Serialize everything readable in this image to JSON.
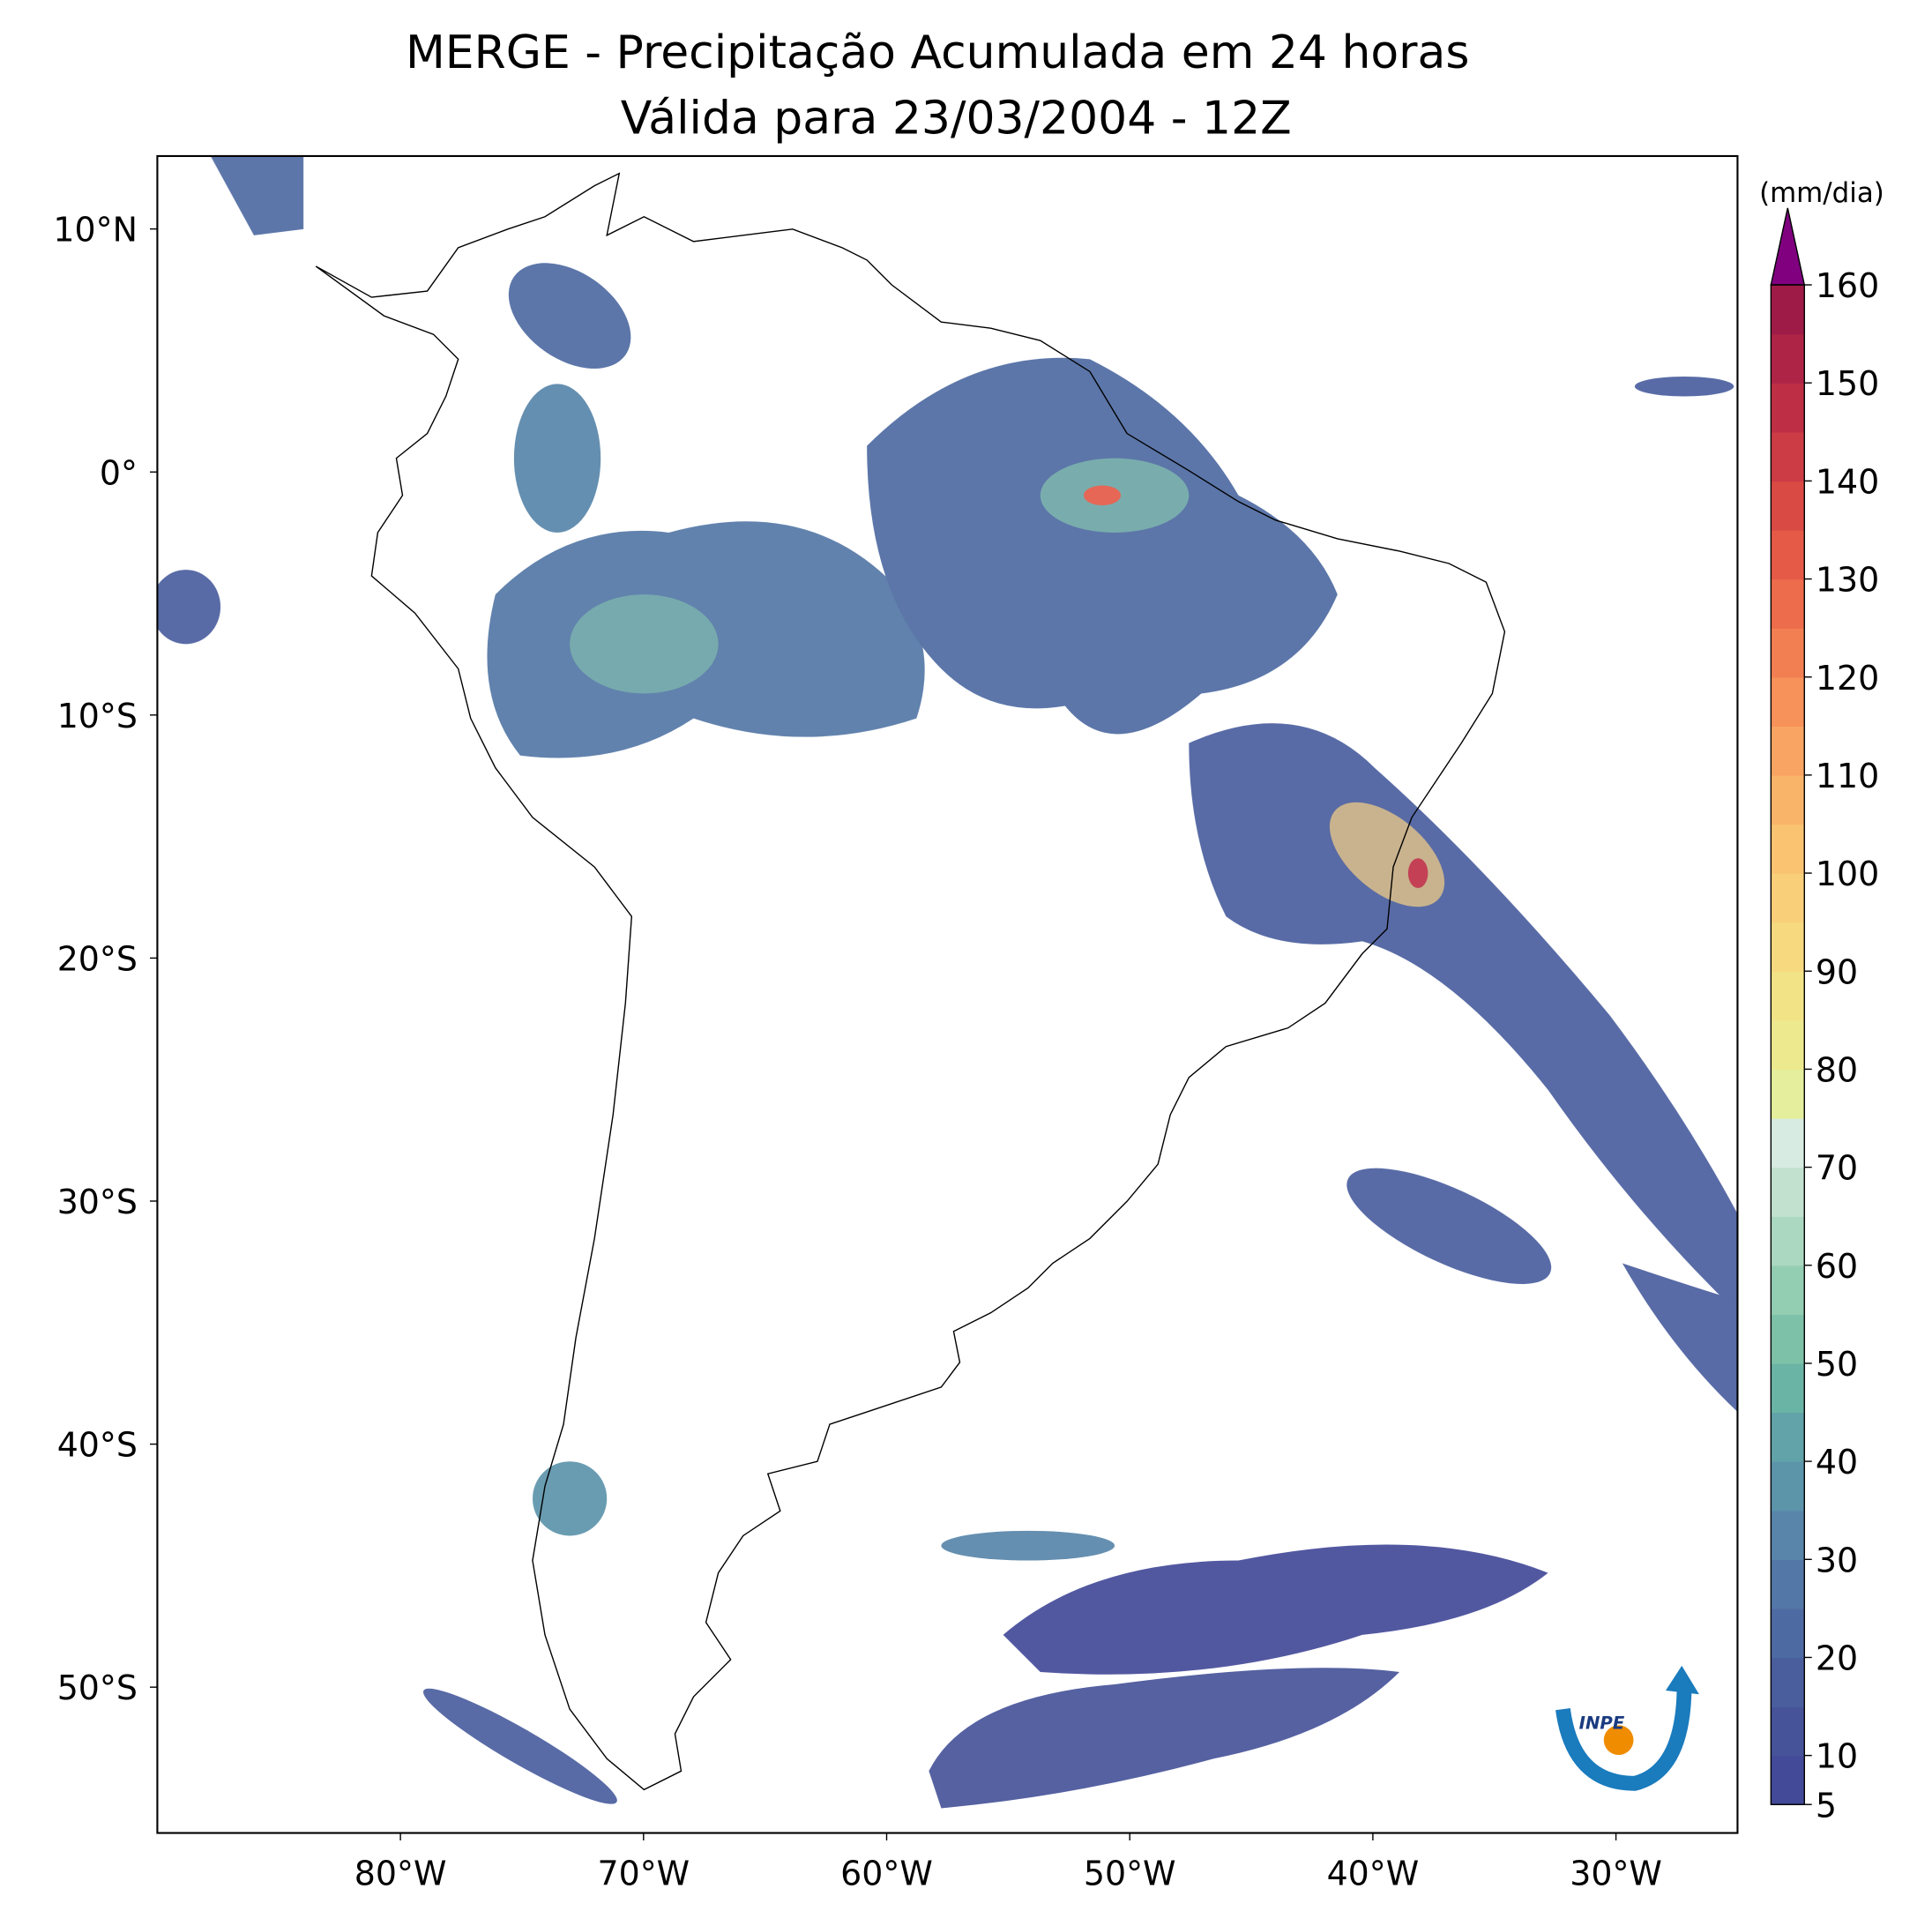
{
  "chart_data": {
    "type": "map",
    "title": "MERGE - Precipitação Acumulada em 24 horas",
    "subtitle": "Válida para 23/03/2004 - 12Z",
    "xlim": [
      -90,
      -25
    ],
    "ylim": [
      -56,
      13
    ],
    "xticks": [
      {
        "value": -80,
        "label": "80°W"
      },
      {
        "value": -70,
        "label": "70°W"
      },
      {
        "value": -60,
        "label": "60°W"
      },
      {
        "value": -50,
        "label": "50°W"
      },
      {
        "value": -40,
        "label": "40°W"
      },
      {
        "value": -30,
        "label": "30°W"
      }
    ],
    "yticks": [
      {
        "value": 10,
        "label": "10°N"
      },
      {
        "value": 0,
        "label": "0°"
      },
      {
        "value": -10,
        "label": "10°S"
      },
      {
        "value": -20,
        "label": "20°S"
      },
      {
        "value": -30,
        "label": "30°S"
      },
      {
        "value": -40,
        "label": "40°S"
      },
      {
        "value": -50,
        "label": "50°S"
      }
    ],
    "colorbar": {
      "label": "(mm/dia)",
      "lim": [
        5,
        160
      ],
      "ticks": [
        5,
        10,
        20,
        30,
        40,
        50,
        60,
        70,
        80,
        90,
        100,
        110,
        120,
        130,
        140,
        150,
        160
      ],
      "colors": [
        "#434a98",
        "#465399",
        "#4a5e9e",
        "#4e6aa2",
        "#5377a6",
        "#5885a9",
        "#5c94aa",
        "#61a3a8",
        "#6ab4a6",
        "#7cc1a8",
        "#93cdb2",
        "#abd8c0",
        "#c2e2cf",
        "#d7ebe2",
        "#e4ee9c",
        "#ede98e",
        "#f3e387",
        "#f7da80",
        "#f9cf79",
        "#fac372",
        "#fab46a",
        "#f9a462",
        "#f6925a",
        "#f27f52",
        "#ec6c4c",
        "#e45a47",
        "#d94a45",
        "#cc3c45",
        "#be2f46",
        "#ae2447",
        "#9e1b48"
      ],
      "extend_color": "#800080"
    },
    "logo_text": "INPE"
  }
}
